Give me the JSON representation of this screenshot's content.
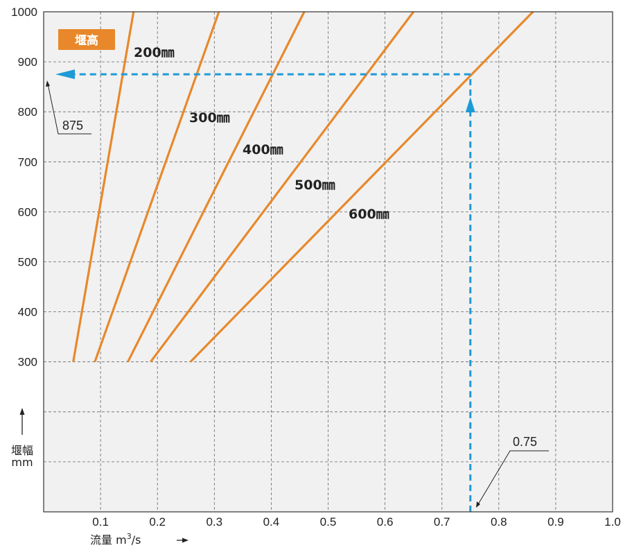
{
  "chart_data": {
    "type": "line",
    "title": "",
    "xlabel": "流量 m³/s",
    "xlabel_main": "流量 m",
    "xlabel_sup": "3",
    "xlabel_tail": "/s",
    "ylabel_line1": "堰幅",
    "ylabel_line2": "mm",
    "xlim": [
      0,
      1.0
    ],
    "ylim": [
      0,
      1000
    ],
    "x_ticks": [
      "0.1",
      "0.2",
      "0.3",
      "0.4",
      "0.5",
      "0.6",
      "0.7",
      "0.8",
      "0.9",
      "1.0"
    ],
    "y_ticks": [
      "300",
      "400",
      "500",
      "600",
      "700",
      "800",
      "900",
      "1000"
    ],
    "grid": true,
    "legend_badge": "堰高",
    "series": [
      {
        "name": "200㎜",
        "x": [
          0.052,
          0.158
        ],
        "y": [
          300,
          1000
        ]
      },
      {
        "name": "300㎜",
        "x": [
          0.09,
          0.308
        ],
        "y": [
          300,
          1000
        ]
      },
      {
        "name": "400㎜",
        "x": [
          0.148,
          0.458
        ],
        "y": [
          300,
          1000
        ]
      },
      {
        "name": "500㎜",
        "x": [
          0.188,
          0.65
        ],
        "y": [
          300,
          1000
        ]
      },
      {
        "name": "600㎜",
        "x": [
          0.258,
          0.86
        ],
        "y": [
          300,
          1000
        ]
      }
    ],
    "annotations": {
      "x_value": 0.75,
      "x_label": "0.75",
      "y_value": 875,
      "y_label": "875"
    },
    "colors": {
      "curve": "#e8882b",
      "guide": "#1e9ad6",
      "plot_bg": "#f1f1f1",
      "grid": "#666666",
      "badge": "#e8882b"
    }
  }
}
